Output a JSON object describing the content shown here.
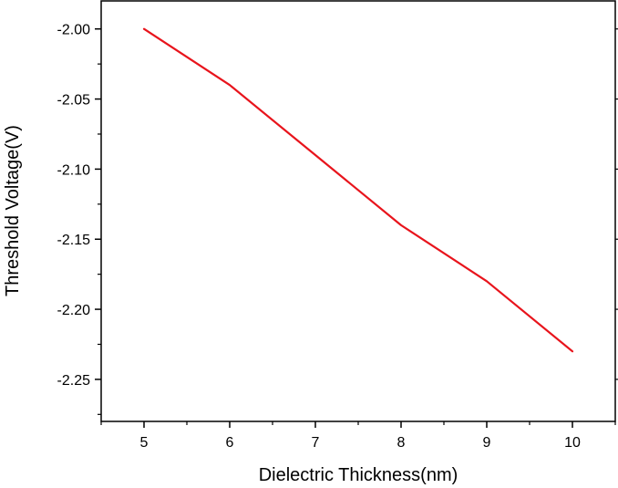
{
  "chart_data": {
    "type": "line",
    "title": "",
    "xlabel": "Dielectric Thickness(nm)",
    "ylabel": "Threshold Voltage(V)",
    "xlim": [
      4.5,
      10.5
    ],
    "ylim": [
      -2.28,
      -1.98
    ],
    "xticks": [
      5,
      6,
      7,
      8,
      9,
      10
    ],
    "xtick_labels": [
      "5",
      "6",
      "7",
      "8",
      "9",
      "10"
    ],
    "yticks": [
      -2.0,
      -2.05,
      -2.1,
      -2.15,
      -2.2,
      -2.25
    ],
    "ytick_labels": [
      "-2.00",
      "-2.05",
      "-2.10",
      "-2.15",
      "-2.20",
      "-2.25"
    ],
    "grid": false,
    "legend": "none",
    "series": [
      {
        "color": "#e8141c",
        "x": [
          5,
          6,
          7,
          8,
          9,
          10
        ],
        "y": [
          -2.0,
          -2.04,
          -2.09,
          -2.14,
          -2.18,
          -2.23
        ]
      }
    ]
  }
}
